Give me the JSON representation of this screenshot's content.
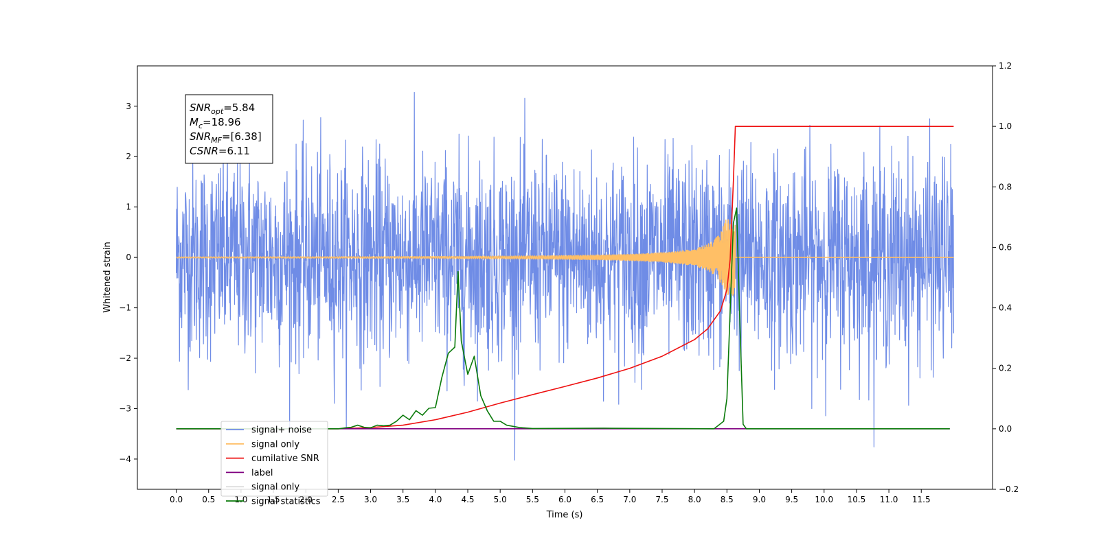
{
  "chart_data": {
    "type": "line",
    "xlabel": "Time (s)",
    "ylabel_left": "Whitened strain",
    "ylabel_right": "",
    "xlim": [
      -0.6,
      12.6
    ],
    "ylim_left": [
      -4.6,
      3.8
    ],
    "ylim_right": [
      -0.2,
      1.2
    ],
    "x_ticks": [
      0.0,
      0.5,
      1.0,
      1.5,
      2.0,
      2.5,
      3.0,
      3.5,
      4.0,
      4.5,
      5.0,
      5.5,
      6.0,
      6.5,
      7.0,
      7.5,
      8.0,
      8.5,
      9.0,
      9.5,
      10.0,
      10.5,
      11.0,
      11.5
    ],
    "x_tick_labels": [
      "0.0",
      "0.5",
      "1.0",
      "1.5",
      "2.0",
      "2.5",
      "3.0",
      "3.5",
      "4.0",
      "4.5",
      "5.0",
      "5.5",
      "6.0",
      "6.5",
      "7.0",
      "7.5",
      "8.0",
      "8.5",
      "9.0",
      "9.5",
      "10.0",
      "10.5",
      "11.0",
      "11.5"
    ],
    "y_left_ticks": [
      -4,
      -3,
      -2,
      -1,
      0,
      1,
      2,
      3
    ],
    "y_left_tick_labels": [
      "−4",
      "−3",
      "−2",
      "−1",
      "0",
      "1",
      "2",
      "3"
    ],
    "y_right_ticks": [
      -0.2,
      0.0,
      0.2,
      0.4,
      0.6,
      0.8,
      1.0,
      1.2
    ],
    "y_right_tick_labels": [
      "−0.2",
      "0.0",
      "0.2",
      "0.4",
      "0.6",
      "0.8",
      "1.0",
      "1.2"
    ],
    "grid": false,
    "legend_position": "lower-left",
    "annotation": {
      "lines": [
        {
          "var": "SNR",
          "sub": "opt",
          "value": "=5.84"
        },
        {
          "var": "M",
          "sub": "c",
          "value": "=18.96"
        },
        {
          "var": "SNR",
          "sub": "MF",
          "value": "=[6.38]"
        },
        {
          "var": "CSNR",
          "sub": "",
          "value": "=6.11"
        }
      ]
    },
    "series": [
      {
        "name": "signal+ noise",
        "color": "#6f8ce6",
        "axis": "left",
        "kind": "noise",
        "x_range": [
          0.0,
          12.0
        ],
        "mean": 0.0,
        "std": 1.0,
        "min": -4.1,
        "max": 3.5
      },
      {
        "name": "signal only",
        "color": "#ffbf66",
        "axis": "left",
        "kind": "chirp",
        "x_range": [
          0.0,
          12.0
        ],
        "merger_time": 8.63,
        "peak_amplitude": 0.75
      },
      {
        "name": "cumilative SNR",
        "color": "#ee1111",
        "axis": "right",
        "x": [
          0.0,
          2.5,
          3.0,
          3.5,
          4.0,
          4.5,
          5.0,
          5.5,
          6.0,
          6.5,
          7.0,
          7.5,
          8.0,
          8.2,
          8.4,
          8.5,
          8.55,
          8.6,
          8.63,
          12.0
        ],
        "y": [
          0.0,
          0.0,
          0.004,
          0.012,
          0.03,
          0.055,
          0.085,
          0.113,
          0.14,
          0.168,
          0.2,
          0.24,
          0.295,
          0.33,
          0.39,
          0.46,
          0.56,
          0.82,
          1.0,
          1.0
        ]
      },
      {
        "name": "label",
        "color": "#800080",
        "axis": "right",
        "x": [
          0.0,
          11.94
        ],
        "y": [
          0.0,
          0.0
        ]
      },
      {
        "name": "signal only",
        "color": "#dddddd",
        "axis": "right",
        "x": [],
        "y": []
      },
      {
        "name": "signal statistics",
        "color": "#0a7a0a",
        "axis": "right",
        "x": [
          0.0,
          2.5,
          2.6,
          2.7,
          2.8,
          2.9,
          3.0,
          3.1,
          3.2,
          3.3,
          3.4,
          3.5,
          3.6,
          3.7,
          3.8,
          3.9,
          4.0,
          4.1,
          4.2,
          4.3,
          4.35,
          4.4,
          4.5,
          4.6,
          4.7,
          4.8,
          4.9,
          5.0,
          5.1,
          5.2,
          5.3,
          5.5,
          6.6,
          8.3,
          8.45,
          8.5,
          8.6,
          8.65,
          8.7,
          8.75,
          8.8,
          11.94
        ],
        "y": [
          0.0,
          0.0,
          0.003,
          0.005,
          0.012,
          0.005,
          0.003,
          0.012,
          0.01,
          0.012,
          0.025,
          0.045,
          0.03,
          0.06,
          0.045,
          0.068,
          0.07,
          0.17,
          0.25,
          0.27,
          0.52,
          0.29,
          0.18,
          0.24,
          0.11,
          0.06,
          0.025,
          0.025,
          0.012,
          0.008,
          0.004,
          0.001,
          0.002,
          0.0,
          0.025,
          0.1,
          0.68,
          0.73,
          0.35,
          0.015,
          0.0,
          0.0
        ]
      }
    ]
  }
}
